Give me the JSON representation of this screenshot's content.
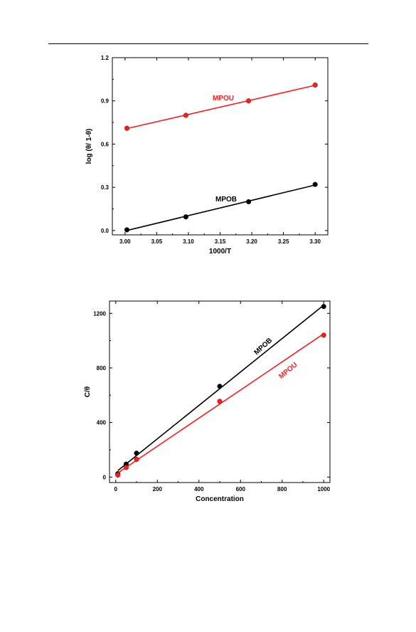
{
  "colors": {
    "black_series": "#000000",
    "red_series": "#ff1a1a"
  },
  "chart_data": [
    {
      "type": "scatter",
      "xlabel": "1000/T",
      "ylabel": "log (θ/ 1-θ)",
      "xlim": [
        2.98,
        3.32
      ],
      "ylim": [
        -0.03,
        1.2
      ],
      "xticks": [
        3.0,
        3.05,
        3.1,
        3.15,
        3.2,
        3.25,
        3.3
      ],
      "xtick_labels": [
        "3.00",
        "3.05",
        "3.10",
        "3.15",
        "3.20",
        "3.25",
        "3.30"
      ],
      "yticks": [
        0.0,
        0.3,
        0.6,
        0.9,
        1.2
      ],
      "ytick_labels": [
        "0.0",
        "0.3",
        "0.6",
        "0.9",
        "1.2"
      ],
      "grid": false,
      "legend": "none",
      "fit_line": true,
      "series": [
        {
          "name": "MPOU",
          "color": "#ff1a1a",
          "x": [
            3.003,
            3.096,
            3.195,
            3.3
          ],
          "y": [
            0.71,
            0.8,
            0.9,
            1.01
          ]
        },
        {
          "name": "MPOB",
          "color": "#000000",
          "x": [
            3.003,
            3.096,
            3.195,
            3.3
          ],
          "y": [
            0.005,
            0.095,
            0.2,
            0.32
          ]
        }
      ]
    },
    {
      "type": "scatter",
      "xlabel": "Concentration",
      "ylabel": "C/θ",
      "xlim": [
        -30,
        1030
      ],
      "ylim": [
        -40,
        1290
      ],
      "xticks": [
        0,
        200,
        400,
        600,
        800,
        1000
      ],
      "xtick_labels": [
        "0",
        "200",
        "400",
        "600",
        "800",
        "1000"
      ],
      "yticks": [
        0,
        400,
        800,
        1200
      ],
      "ytick_labels": [
        "0",
        "400",
        "800",
        "1200"
      ],
      "grid": false,
      "legend": "none",
      "fit_line": true,
      "series": [
        {
          "name": "MPOB",
          "color": "#000000",
          "x": [
            10,
            50,
            100,
            500,
            1000
          ],
          "y": [
            25,
            95,
            175,
            665,
            1250
          ]
        },
        {
          "name": "MPOU",
          "color": "#ff1a1a",
          "x": [
            10,
            50,
            100,
            500,
            1000
          ],
          "y": [
            15,
            70,
            130,
            555,
            1040
          ]
        }
      ]
    }
  ]
}
